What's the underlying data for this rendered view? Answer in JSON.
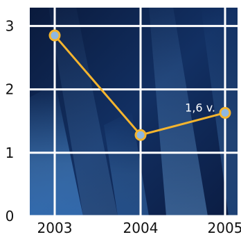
{
  "chart_data": {
    "type": "line",
    "title": "",
    "xlabel": "",
    "ylabel": "",
    "x": [
      "2003",
      "2004",
      "2005"
    ],
    "y": [
      2.85,
      1.28,
      1.63
    ],
    "x_tick_labels": [
      "2003",
      "2004",
      "2005"
    ],
    "y_tick_labels": [
      "0",
      "1",
      "2",
      "3"
    ],
    "ylim": [
      0,
      3.3
    ],
    "grid": true,
    "data_labels": [
      {
        "index": 2,
        "text": "1,6 v."
      }
    ],
    "colors": {
      "line": "#f5b52e",
      "marker_fill": "#8fb8e0",
      "marker_edge": "#f5b52e",
      "grid": "#ffffff",
      "background_dark": "#0a1a3c",
      "background_light": "#4a86c4"
    }
  }
}
